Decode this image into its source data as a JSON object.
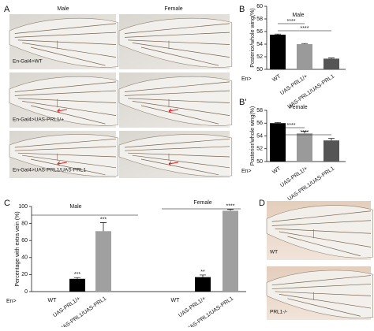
{
  "panels": [
    "A",
    "B",
    "B'",
    "C",
    "D"
  ],
  "photos_a": {
    "columns": [
      "Male",
      "Female"
    ],
    "rows": [
      "En-Gal4>WT",
      "En-Gal4>UAS-PRL1/+",
      "En-Gal4>UAS-PRL1/UAS-PRL1"
    ]
  },
  "photos_d": {
    "labels": [
      "WT",
      "PRL1-/-"
    ]
  },
  "chart_data": [
    {
      "type": "bar",
      "title": "Male",
      "ylabel": "Posterior/whole wing(%)",
      "prefix": "En>",
      "categories": [
        "WT",
        "UAS-PRL1/+",
        "UAS-PRL1/UAS-PRL1"
      ],
      "values": [
        55.5,
        54.0,
        51.7
      ],
      "errors": [
        0.1,
        0.1,
        0.1
      ],
      "colors": [
        "#000000",
        "#9a9a9a",
        "#555555"
      ],
      "ylim": [
        50,
        60
      ],
      "yticks": [
        50,
        52,
        54,
        56,
        58,
        60
      ],
      "brackets": [
        "****",
        "****"
      ]
    },
    {
      "type": "bar",
      "title": "Female",
      "ylabel": "Posterior/whole wing(%)",
      "prefix": "En>",
      "categories": [
        "WT",
        "UAS-PRL1/+",
        "UAS-PRL1/UAS-PRL1"
      ],
      "values": [
        56.0,
        54.4,
        53.3
      ],
      "errors": [
        0.1,
        0.3,
        0.3
      ],
      "colors": [
        "#000000",
        "#9a9a9a",
        "#555555"
      ],
      "ylim": [
        50,
        58
      ],
      "yticks": [
        50,
        52,
        54,
        56,
        58
      ],
      "brackets": [
        "****",
        "****"
      ]
    },
    {
      "type": "bar",
      "ylabel": "Percentage with extra vein (%)",
      "prefix": "En>",
      "groups": [
        "Male",
        "Female"
      ],
      "categories": [
        "WT",
        "UAS-PRL1/+",
        "UAS-PRL1/UAS-PRL1",
        "WT",
        "UAS-PRL1/+",
        "UAS-PRL1/UAS-PRL1"
      ],
      "values": [
        0,
        15,
        71,
        0,
        17,
        95
      ],
      "errors": [
        0,
        1.5,
        10,
        0,
        2.5,
        1.5
      ],
      "colors": [
        "#000000",
        "#000000",
        "#a0a0a0",
        "#000000",
        "#000000",
        "#a0a0a0"
      ],
      "significance": [
        null,
        "***",
        "***",
        null,
        "**",
        "****"
      ],
      "ylim": [
        0,
        100
      ],
      "yticks": [
        0,
        20,
        40,
        60,
        80,
        100
      ]
    }
  ]
}
